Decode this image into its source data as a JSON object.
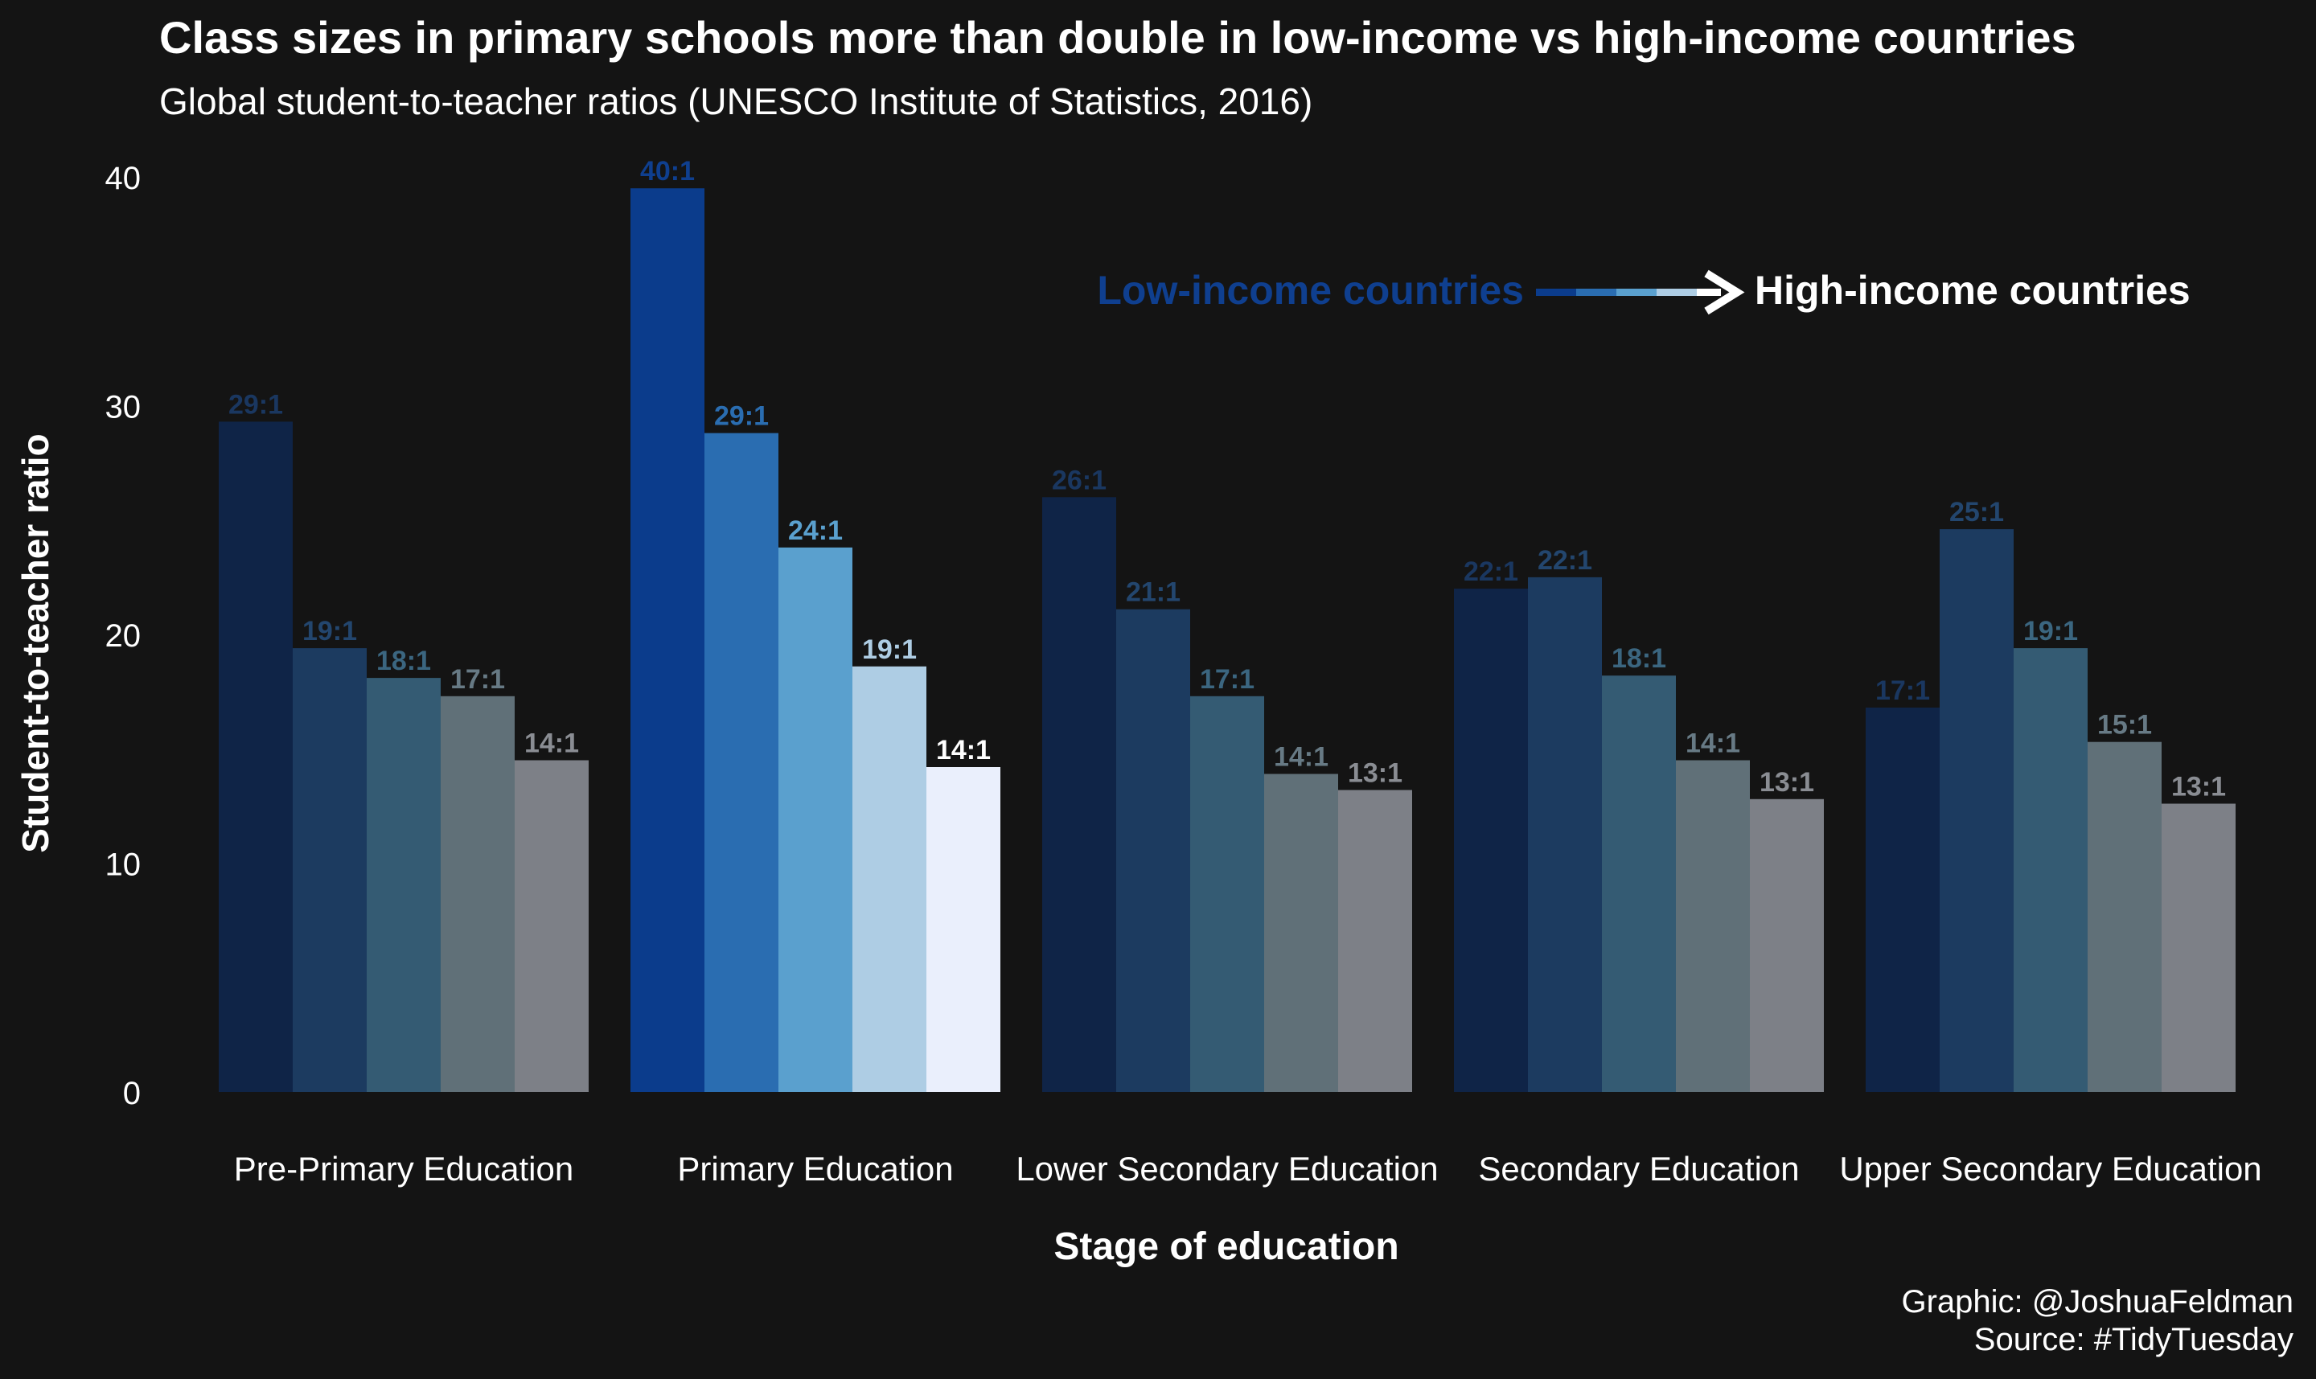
{
  "chart_data": {
    "type": "bar",
    "title": "Class sizes in primary schools more than double in low-income vs high-income countries",
    "subtitle": "Global student-to-teacher ratios (UNESCO Institute of Statistics, 2016)",
    "xlabel": "Stage of education",
    "ylabel": "Student-to-teacher ratio",
    "ylim": [
      0,
      40
    ],
    "yticks": [
      0,
      10,
      20,
      30,
      40
    ],
    "grid": false,
    "categories": [
      "Pre-Primary Education",
      "Primary Education",
      "Lower Secondary Education",
      "Secondary Education",
      "Upper Secondary Education"
    ],
    "highlight_category": "Primary Education",
    "series": [
      {
        "values": [
          29.3,
          39.5,
          26.0,
          22.0,
          16.8
        ],
        "labels": [
          "29:1",
          "40:1",
          "26:1",
          "22:1",
          "17:1"
        ]
      },
      {
        "values": [
          19.4,
          28.8,
          21.1,
          22.5,
          24.6
        ],
        "labels": [
          "19:1",
          "29:1",
          "21:1",
          "22:1",
          "25:1"
        ]
      },
      {
        "values": [
          18.1,
          23.8,
          17.3,
          18.2,
          19.4
        ],
        "labels": [
          "18:1",
          "24:1",
          "17:1",
          "18:1",
          "19:1"
        ]
      },
      {
        "values": [
          17.3,
          18.6,
          13.9,
          14.5,
          15.3
        ],
        "labels": [
          "17:1",
          "19:1",
          "14:1",
          "14:1",
          "15:1"
        ]
      },
      {
        "values": [
          14.5,
          14.2,
          13.2,
          12.8,
          12.6
        ],
        "labels": [
          "14:1",
          "14:1",
          "13:1",
          "13:1",
          "13:1"
        ]
      }
    ],
    "colors": {
      "muted": [
        "#0f2447",
        "#1c3b60",
        "#345b73",
        "#607078",
        "#7d8087"
      ],
      "highlight": [
        "#0b3c8c",
        "#2a6db1",
        "#5aa0ce",
        "#aecde4",
        "#eaeffc"
      ],
      "muted_label": [
        "#1a3760",
        "#23466e",
        "#3b6680",
        "#677a85",
        "#8a8d93"
      ],
      "highlight_label": [
        "#0f3f8f",
        "#2a6db1",
        "#5aa0ce",
        "#aecde4",
        "#ffffff"
      ],
      "background": "#141414",
      "text": "#ffffff"
    },
    "legend": {
      "low_label": "Low-income countries",
      "high_label": "High-income countries",
      "low_color": "#0f3f8f",
      "high_color": "#ffffff",
      "placement": "top-right"
    }
  },
  "caption": {
    "line1": "Graphic: @JoshuaFeldman",
    "line2": "Source: #TidyTuesday"
  }
}
